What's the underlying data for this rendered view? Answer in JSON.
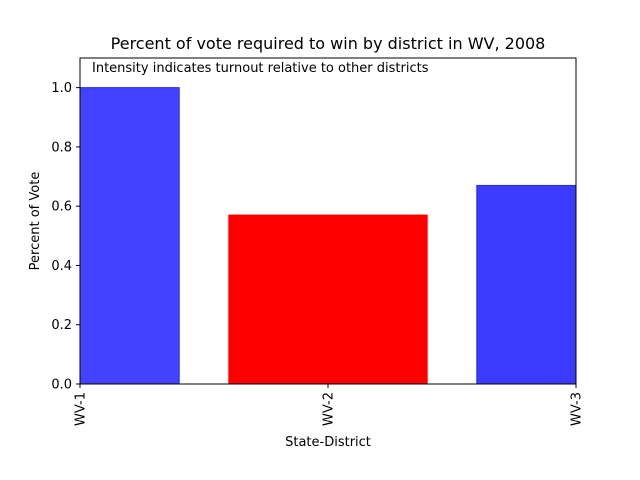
{
  "chart_data": {
    "type": "bar",
    "title": "Percent of vote required to win by district in WV, 2008",
    "annotation": "Intensity indicates turnout relative to other districts",
    "xlabel": "State-District",
    "ylabel": "Percent of Vote",
    "ylim": [
      0,
      1.1
    ],
    "yticks": [
      0.0,
      0.2,
      0.4,
      0.6,
      0.8,
      1.0
    ],
    "ytick_labels": [
      "0.0",
      "0.2",
      "0.4",
      "0.6",
      "0.8",
      "1.0"
    ],
    "categories": [
      "WV-1",
      "WV-2",
      "WV-3"
    ],
    "values": [
      1.0,
      0.57,
      0.67
    ],
    "colors": [
      "#4343ff",
      "#ff0000",
      "#3b3bff"
    ],
    "edge_colors": [
      "#2a2ad6",
      "#ff0000",
      "#2a2ad6"
    ],
    "grid": false
  }
}
